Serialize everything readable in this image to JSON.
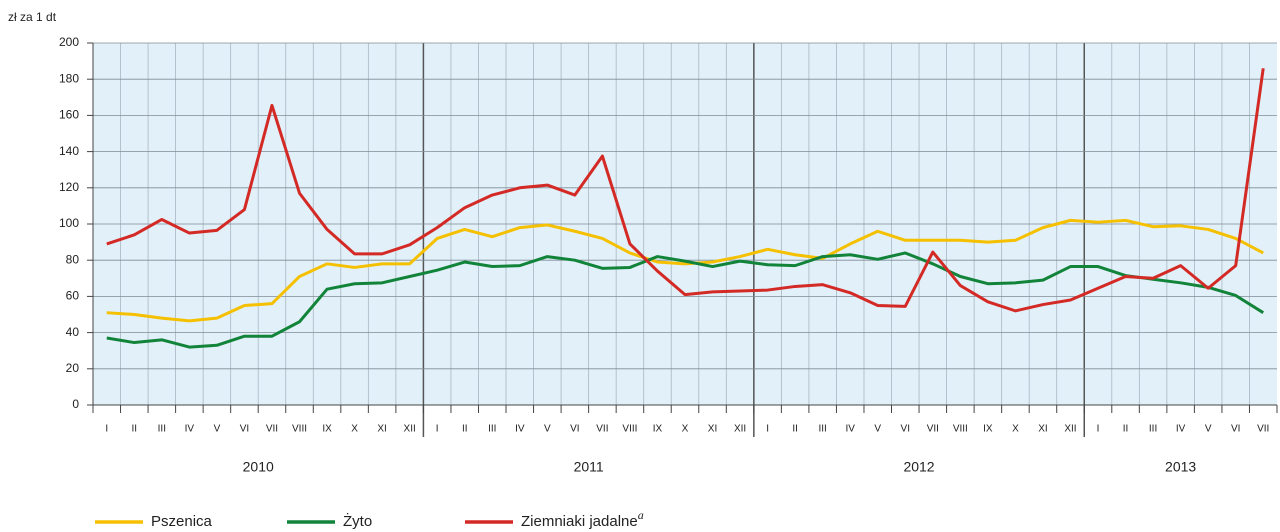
{
  "chart_data": {
    "type": "line",
    "y_label": "zł za 1 dt",
    "categories": [
      "I",
      "II",
      "III",
      "IV",
      "V",
      "VI",
      "VII",
      "VIII",
      "IX",
      "X",
      "XI",
      "XII",
      "I",
      "II",
      "III",
      "IV",
      "V",
      "VI",
      "VII",
      "VIII",
      "IX",
      "X",
      "XI",
      "XII",
      "I",
      "II",
      "III",
      "IV",
      "V",
      "VI",
      "VII",
      "VIII",
      "IX",
      "X",
      "XI",
      "XII",
      "I",
      "II",
      "III",
      "IV",
      "V",
      "VI",
      "VII"
    ],
    "years": [
      "2010",
      "2011",
      "2012",
      "2013"
    ],
    "ylim": [
      0,
      200
    ],
    "yticks": [
      0,
      20,
      40,
      60,
      80,
      100,
      120,
      140,
      160,
      180,
      200
    ],
    "grid": true,
    "series": [
      {
        "name": "Pszenica",
        "color": "#f5c000",
        "values": [
          51,
          50,
          48,
          46.5,
          48,
          55,
          56,
          71,
          78,
          76,
          78,
          78,
          92,
          97,
          93,
          98,
          99.5,
          96,
          92,
          84,
          79,
          78,
          79,
          82,
          86,
          83,
          81,
          89,
          96,
          91,
          91,
          91,
          90,
          91,
          98,
          102,
          101,
          102,
          98.5,
          99,
          97,
          92,
          84
        ]
      },
      {
        "name": "Żyto",
        "color": "#12843a",
        "values": [
          37,
          34.5,
          36,
          32,
          33,
          38,
          38,
          46,
          64,
          67,
          67.5,
          71,
          74.5,
          79,
          76.5,
          77,
          82,
          80,
          75.5,
          76,
          82,
          79.5,
          76.5,
          79.5,
          77.5,
          77,
          82,
          83,
          80.5,
          84,
          78,
          71,
          67,
          67.5,
          69,
          76.5,
          76.5,
          71.5,
          69.5,
          67.5,
          65,
          60.5,
          51
        ]
      },
      {
        "name": "Ziemniaki jadalne",
        "note": "a",
        "color": "#d42a25",
        "values": [
          89,
          94,
          102.5,
          95,
          96.5,
          108,
          165.5,
          117,
          97,
          83.5,
          83.5,
          88.5,
          98,
          109,
          116,
          120,
          121.5,
          116,
          137.5,
          89,
          74,
          61,
          62.5,
          63,
          63.5,
          65.5,
          66.5,
          62,
          55,
          54.5,
          84.5,
          66,
          57,
          52,
          55.5,
          58,
          64.5,
          71,
          70,
          77,
          64.5,
          77,
          186
        ]
      }
    ]
  }
}
